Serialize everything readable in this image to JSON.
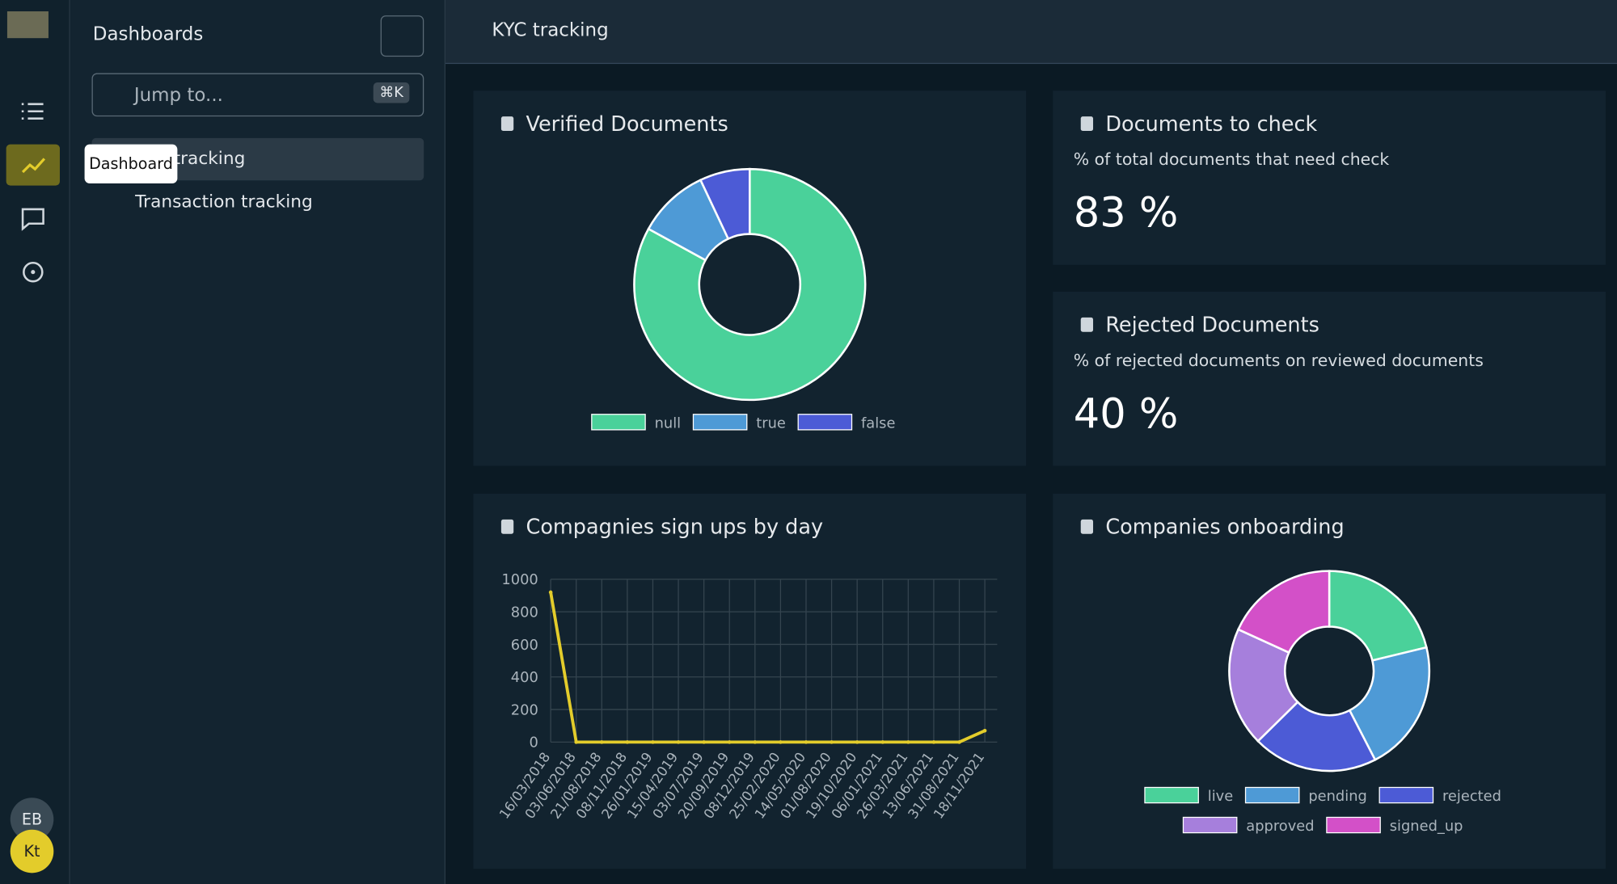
{
  "sidebar": {
    "title": "Dashboards",
    "search_placeholder": "Jump to...",
    "search_shortcut": "⌘K",
    "items": [
      "KYC tracking",
      "Transaction tracking"
    ],
    "tooltip": "Dashboard",
    "avatars": [
      "EB",
      "Kt"
    ]
  },
  "header": {
    "title": "KYC tracking"
  },
  "panels": [
    {
      "title": "Verified Documents",
      "chart": {
        "type": "pie",
        "categories": [
          "null",
          "true",
          "false"
        ],
        "values": [
          83,
          10,
          7
        ],
        "colors": [
          "#4ad19a",
          "#4e9ad6",
          "#4c5bd6"
        ]
      }
    },
    {
      "title": "Documents to check",
      "subtitle": "% of total documents that need check",
      "value": "83 %"
    },
    {
      "title": "Rejected Documents",
      "subtitle": "% of rejected documents on reviewed documents",
      "value": "40 %"
    },
    {
      "title": "Compagnies sign ups by day",
      "chart": {
        "type": "line",
        "categories": [
          "16/03/2018",
          "03/06/2018",
          "21/08/2018",
          "08/11/2018",
          "26/01/2019",
          "15/04/2019",
          "03/07/2019",
          "20/09/2019",
          "08/12/2019",
          "25/02/2020",
          "14/05/2020",
          "01/08/2020",
          "19/10/2020",
          "06/01/2021",
          "26/03/2021",
          "13/06/2021",
          "31/08/2021",
          "18/11/2021"
        ],
        "series": [
          {
            "color": "#e3cc2b",
            "values": [
              920,
              0,
              0,
              0,
              0,
              0,
              0,
              0,
              0,
              0,
              0,
              0,
              0,
              0,
              0,
              0,
              0,
              70
            ]
          }
        ],
        "ylim": [
          0,
          1000
        ],
        "yticks": [
          0,
          200,
          400,
          600,
          800,
          1000
        ],
        "grid": true
      }
    },
    {
      "title": "Companies onboarding",
      "chart": {
        "type": "pie",
        "categories": [
          "live",
          "pending",
          "rejected",
          "approved",
          "signed_up"
        ],
        "values": [
          21,
          21,
          20,
          19,
          18
        ],
        "colors": [
          "#4ad19a",
          "#4e9ad6",
          "#4c5bd6",
          "#a67fdc",
          "#d350c8"
        ]
      }
    }
  ]
}
